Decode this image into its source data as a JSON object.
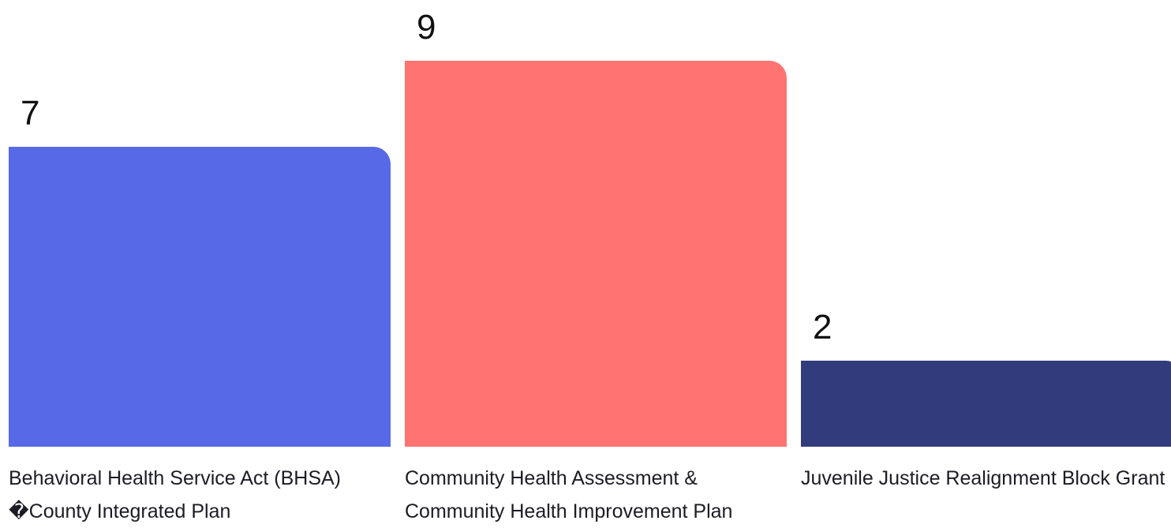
{
  "chart_data": {
    "type": "bar",
    "title": "",
    "xlabel": "",
    "ylabel": "",
    "ylim": [
      0,
      9
    ],
    "grid": false,
    "legend": "none",
    "bars": [
      {
        "category": "Behavioral Health Service Act (BHSA) �County Integrated Plan",
        "value": 7,
        "color": "#5769e6"
      },
      {
        "category": "Community Health Assessment & Community Health Improvement Plan",
        "value": 9,
        "color": "#ff7372"
      },
      {
        "category": "Juvenile Justice Realignment Block Grant",
        "value": 2,
        "color": "#323b7c"
      }
    ]
  }
}
